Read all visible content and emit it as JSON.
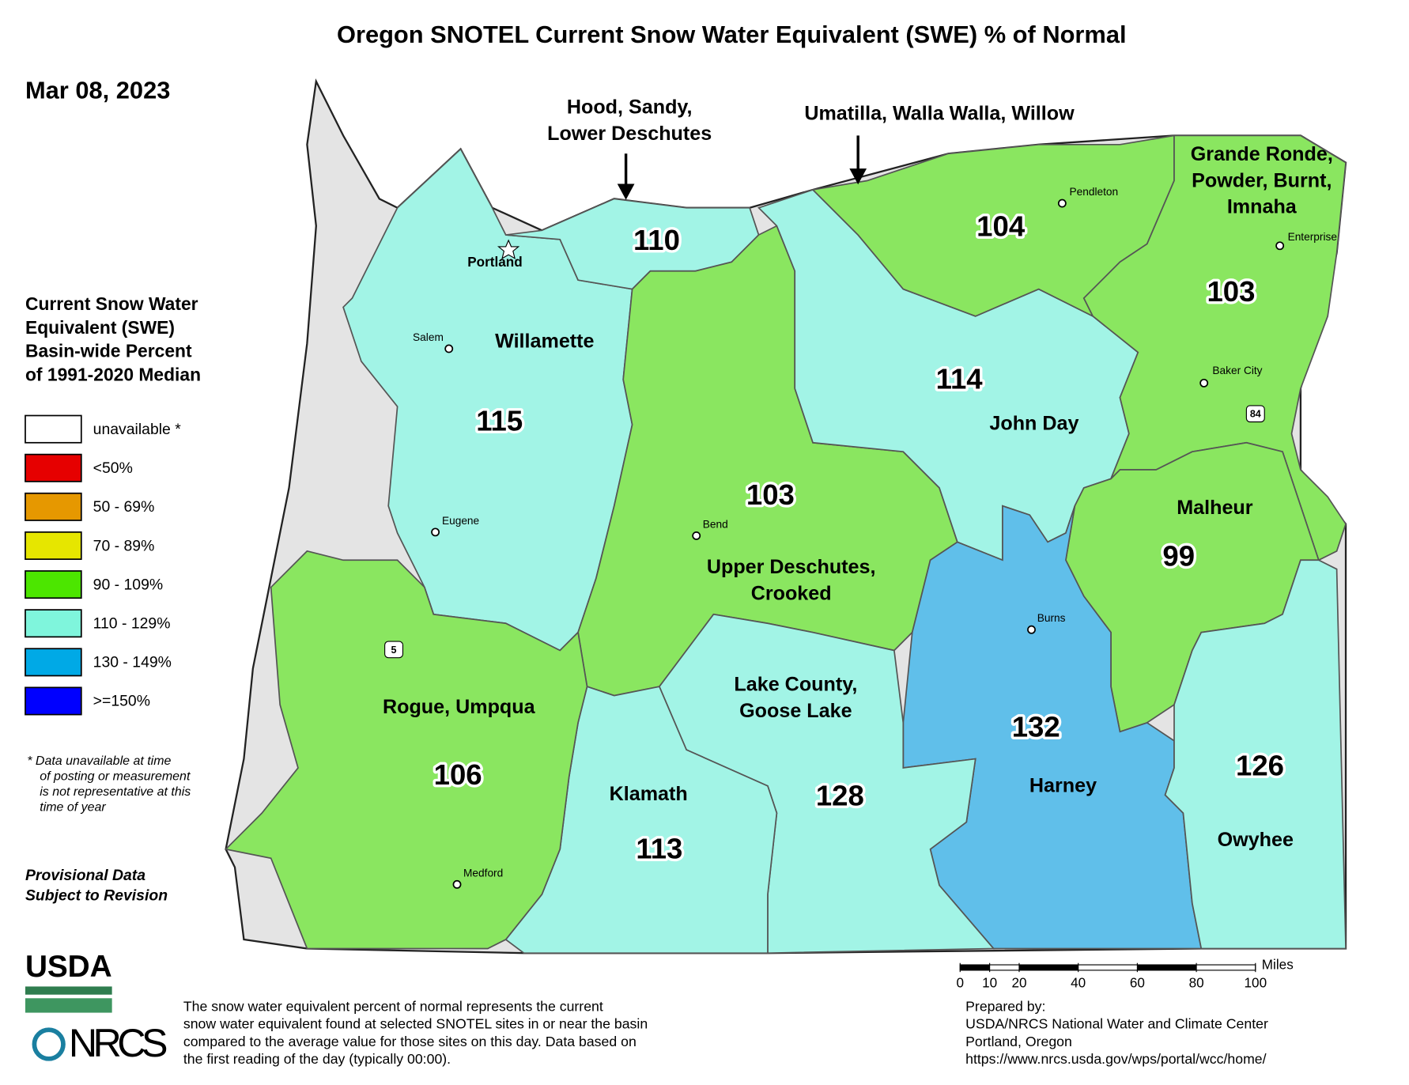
{
  "title": "Oregon SNOTEL Current Snow Water Equivalent (SWE) % of Normal",
  "date": "Mar 08, 2023",
  "legend": {
    "title": [
      "Current Snow Water",
      "Equivalent (SWE)",
      "Basin-wide Percent",
      "of 1991-2020 Median"
    ],
    "items": [
      {
        "label": "unavailable *",
        "color": "#ffffff"
      },
      {
        "label": "<50%",
        "color": "#e60000"
      },
      {
        "label": "50 - 69%",
        "color": "#e69800"
      },
      {
        "label": "70 - 89%",
        "color": "#e6e600"
      },
      {
        "label": "90 - 109%",
        "color": "#4ce600"
      },
      {
        "label": "110 - 129%",
        "color": "#7ff5dc"
      },
      {
        "label": "130 - 149%",
        "color": "#00a9e6"
      },
      {
        "label": ">=150%",
        "color": "#0000ff"
      }
    ]
  },
  "footnote": [
    "*  Data unavailable at time",
    "of posting or measurement",
    "is not representative at this",
    "time of year"
  ],
  "provisional": [
    "Provisional Data",
    "Subject to Revision"
  ],
  "basins": [
    {
      "name": [
        "Willamette"
      ],
      "value": 115,
      "color": "#a2f4e6"
    },
    {
      "value": 110,
      "color": "#a2f4e6"
    },
    {
      "name": [
        "Upper Deschutes,",
        "Crooked"
      ],
      "value": 103,
      "color": "#8ae660"
    },
    {
      "name": [
        "John Day"
      ],
      "value": 114,
      "color": "#a2f4e6"
    },
    {
      "value": 104,
      "color": "#8ae660"
    },
    {
      "name": [
        "Grande Ronde,",
        "Powder, Burnt,",
        "Imnaha"
      ],
      "value": 103,
      "color": "#8ae660"
    },
    {
      "name": [
        "Malheur"
      ],
      "value": 99,
      "color": "#8ae660"
    },
    {
      "name": [
        "Harney"
      ],
      "value": 132,
      "color": "#60bfea"
    },
    {
      "name": [
        "Owyhee"
      ],
      "value": 126,
      "color": "#a2f4e6"
    },
    {
      "name": [
        "Lake County,",
        "Goose Lake"
      ],
      "value": 128,
      "color": "#a2f4e6"
    },
    {
      "name": [
        "Klamath"
      ],
      "value": 113,
      "color": "#a2f4e6"
    },
    {
      "name": [
        "Rogue, Umpqua"
      ],
      "value": 106,
      "color": "#8ae660"
    }
  ],
  "callouts": [
    {
      "label": [
        "Hood, Sandy,",
        "Lower Deschutes"
      ]
    },
    {
      "label": [
        "Umatilla, Walla Walla, Willow"
      ]
    }
  ],
  "cities": [
    "Portland",
    "Salem",
    "Eugene",
    "Bend",
    "Medford",
    "Pendleton",
    "Enterprise",
    "Baker City",
    "Burns"
  ],
  "highways": [
    "5",
    "84"
  ],
  "scale": {
    "ticks": [
      0,
      10,
      20,
      40,
      60,
      80,
      100
    ],
    "unit": "Miles"
  },
  "description": [
    "The snow water equivalent percent of normal represents the current",
    "snow water equivalent found at selected SNOTEL sites in or near the basin",
    "compared to the average value for those sites on this day. Data based on",
    "the first reading of the day (typically 00:00)."
  ],
  "prepared_by": [
    "Prepared by:",
    "USDA/NRCS National Water and Climate Center",
    "Portland, Oregon",
    "https://www.nrcs.usda.gov/wps/portal/wcc/home/"
  ],
  "logos": [
    "USDA",
    "NRCS"
  ]
}
